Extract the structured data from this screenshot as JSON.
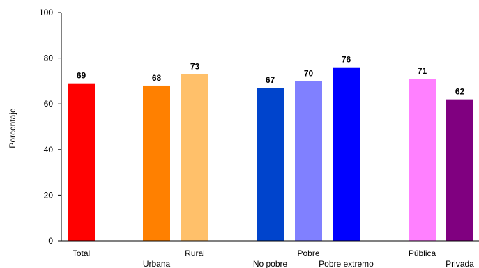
{
  "chart_data": {
    "type": "bar",
    "ylabel": "Porcentaje",
    "xlabel": "",
    "ylim": [
      0,
      100
    ],
    "yticks": [
      "0",
      "20",
      "40",
      "60",
      "80",
      "100"
    ],
    "grid": false,
    "legend": "none",
    "categories": [
      "Total",
      "Urbana",
      "Rural",
      "No pobre",
      "Pobre",
      "Pobre extremo",
      "Pública",
      "Privada"
    ],
    "values": [
      69,
      68,
      73,
      67,
      70,
      76,
      71,
      62
    ],
    "value_labels": [
      "69",
      "68",
      "73",
      "67",
      "70",
      "76",
      "71",
      "62"
    ],
    "label_rows": [
      "upper",
      "lower",
      "upper",
      "lower",
      "upper",
      "lower",
      "upper",
      "lower"
    ],
    "colors": [
      "#ff0000",
      "#ff8000",
      "#ffc06a",
      "#0044cc",
      "#8080ff",
      "#0000ff",
      "#ff80ff",
      "#800080"
    ],
    "groups": [
      [
        0
      ],
      [
        1,
        2
      ],
      [
        3,
        4,
        5
      ],
      [
        6,
        7
      ]
    ]
  }
}
